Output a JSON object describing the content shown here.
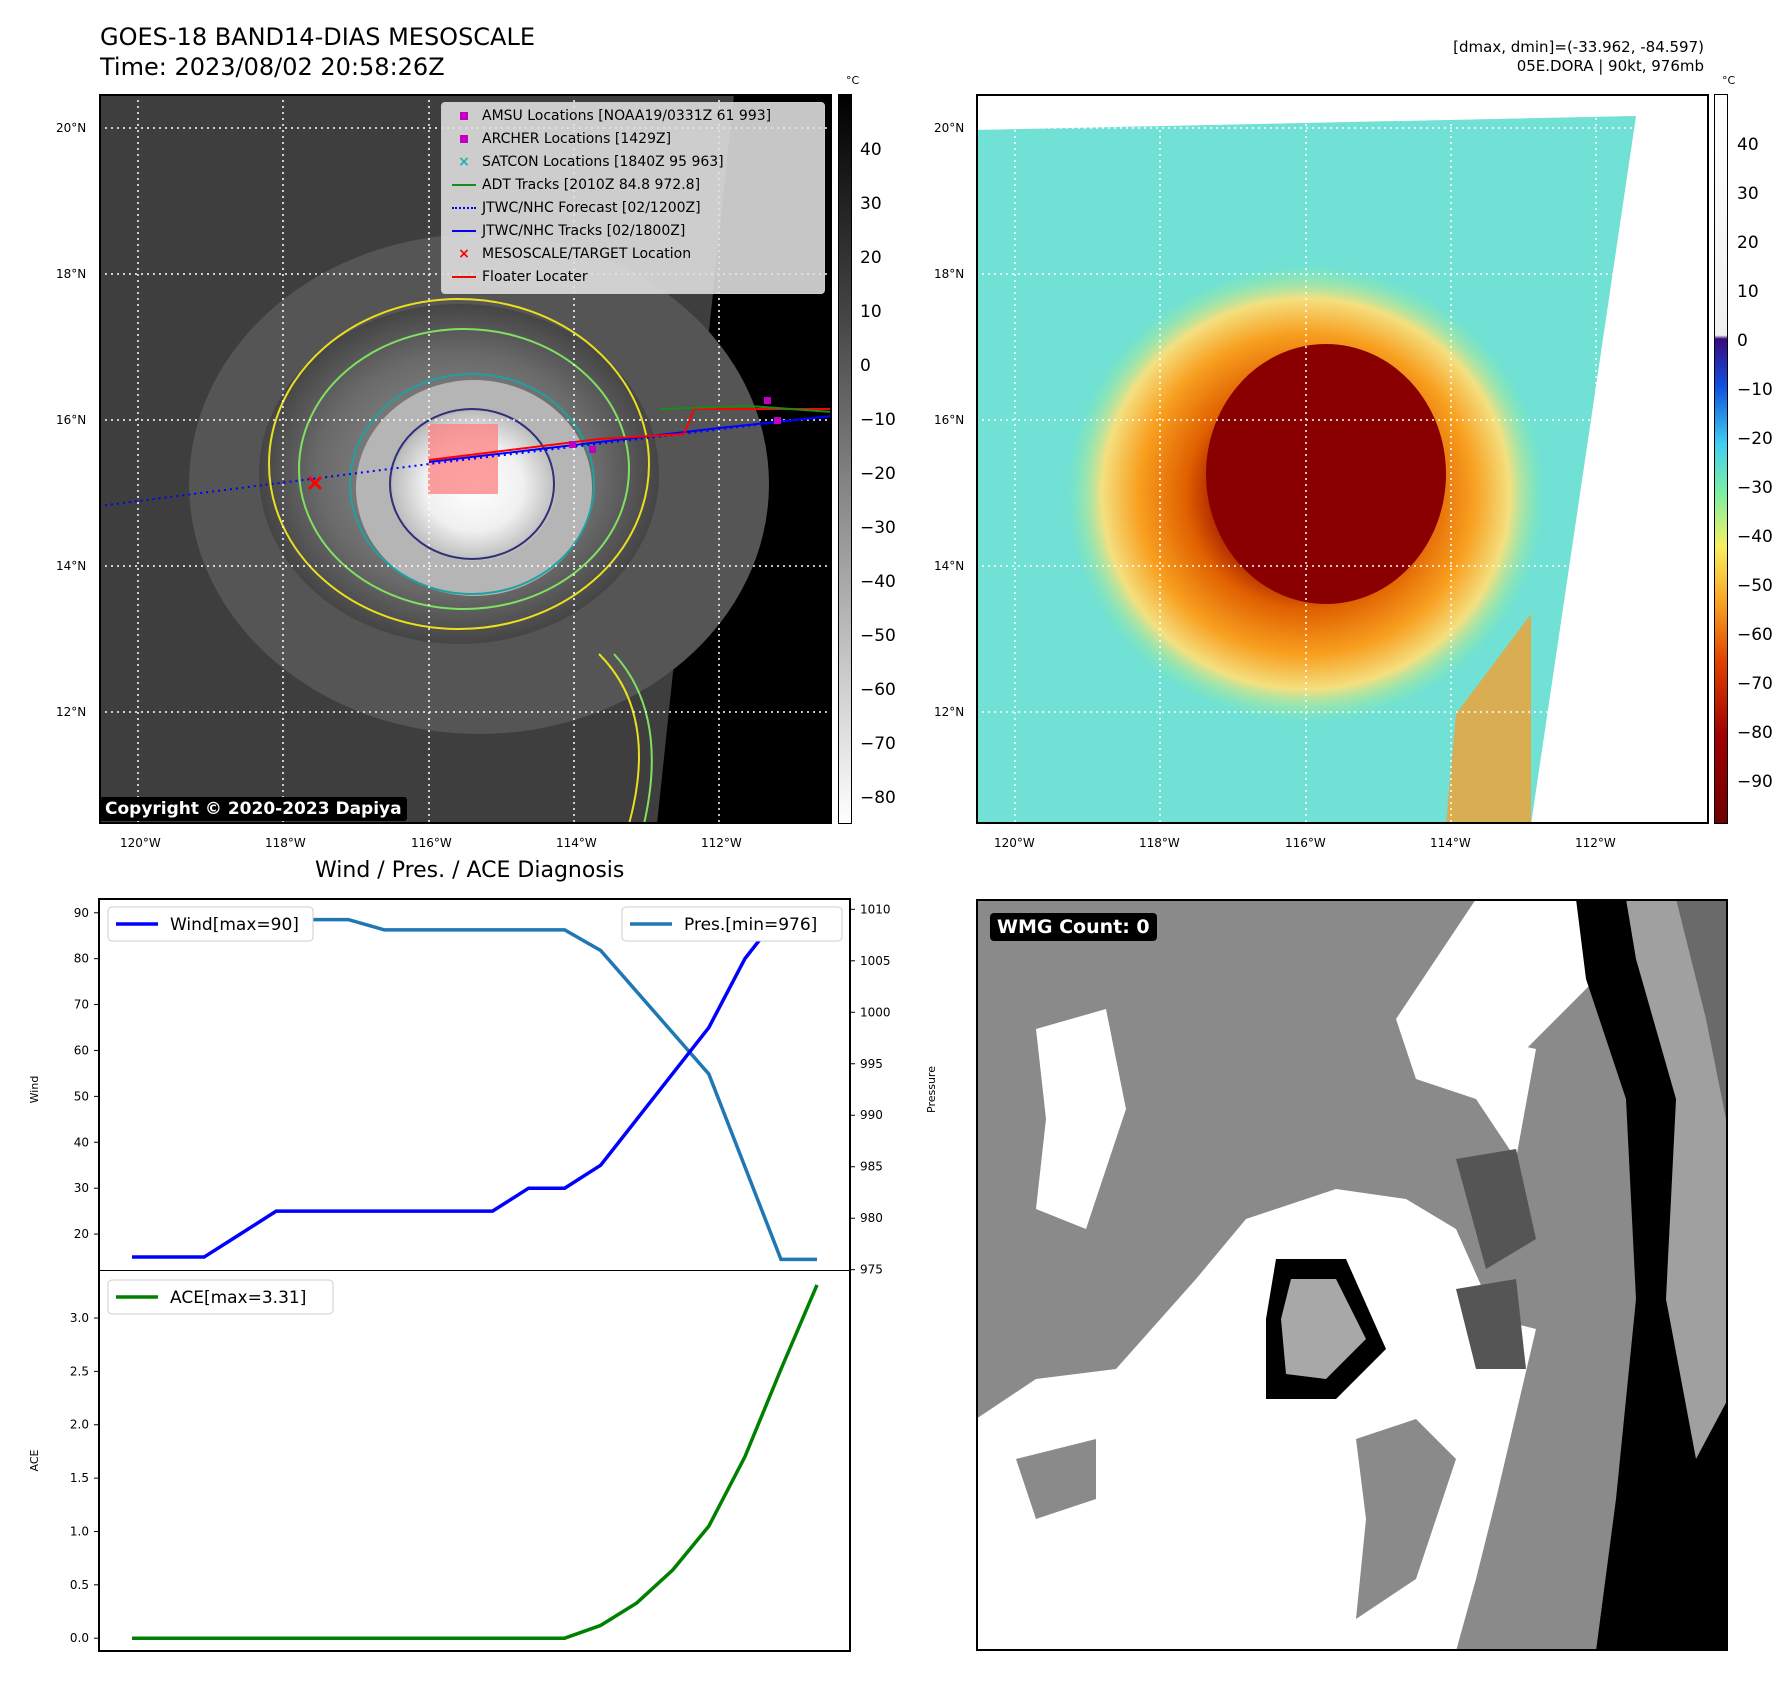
{
  "header": {
    "title_line1": "GOES-18 BAND14-DIAS MESOSCALE",
    "title_line2": "Time: 2023/08/02 20:58:26Z",
    "right_line1": "[dmax, dmin]=(-33.962, -84.597)",
    "right_line2": "05E.DORA | 90kt, 976mb"
  },
  "map": {
    "lat_labels": [
      "20°N",
      "18°N",
      "16°N",
      "14°N",
      "12°N"
    ],
    "lon_labels": [
      "120°W",
      "118°W",
      "116°W",
      "114°W",
      "112°W"
    ],
    "copyright": "Copyright © 2020-2023 Dapiya",
    "legend": [
      {
        "label": "AMSU Locations [NOAA19/0331Z 61 993]",
        "color": "#c000c0",
        "marker": "square"
      },
      {
        "label": "ARCHER Locations [1429Z]",
        "color": "#c000c0",
        "marker": "square"
      },
      {
        "label": "SATCON Locations [1840Z 95 963]",
        "color": "#20b0b0",
        "marker": "x"
      },
      {
        "label": "ADT Tracks [2010Z 84.8 972.8]",
        "color": "#1a8a1a",
        "marker": "line"
      },
      {
        "label": "JTWC/NHC Forecast [02/1200Z]",
        "color": "#0000ff",
        "marker": "dotted"
      },
      {
        "label": "JTWC/NHC Tracks [02/1800Z]",
        "color": "#0000ff",
        "marker": "line-dot"
      },
      {
        "label": "MESOSCALE/TARGET Location",
        "color": "#ff0000",
        "marker": "x"
      },
      {
        "label": "Floater Locater",
        "color": "#ff0000",
        "marker": "line"
      }
    ]
  },
  "colorbar_gray": {
    "unit": "°C",
    "ticks": [
      "40",
      "30",
      "20",
      "10",
      "0",
      "−10",
      "−20",
      "−30",
      "−40",
      "−50",
      "−60",
      "−70",
      "−80"
    ]
  },
  "colorbar_color": {
    "unit": "°C",
    "ticks": [
      "40",
      "30",
      "20",
      "10",
      "0",
      "−10",
      "−20",
      "−30",
      "−40",
      "−50",
      "−60",
      "−70",
      "−80",
      "−90"
    ]
  },
  "wmg": {
    "label": "WMG Count: 0"
  },
  "chart_data": [
    {
      "type": "line",
      "title": "Wind / Pres. / ACE Diagnosis",
      "ylabel": "Wind",
      "ylabel_right": "Pressure",
      "ylim": [
        10,
        93
      ],
      "ylim_right": [
        974,
        1011
      ],
      "yticks": [
        20,
        30,
        40,
        50,
        60,
        70,
        80,
        90
      ],
      "yticks_right": [
        975,
        980,
        985,
        990,
        995,
        1000,
        1005,
        1010
      ],
      "series": [
        {
          "name": "Wind[max=90]",
          "color": "#0000ff",
          "axis": "left",
          "values": [
            15,
            15,
            15,
            20,
            25,
            25,
            25,
            25,
            25,
            25,
            25,
            30,
            30,
            35,
            45,
            55,
            65,
            80,
            90,
            90
          ]
        },
        {
          "name": "Pres.[min=976]",
          "color": "#1f77b4",
          "axis": "right",
          "values": [
            1010,
            1010,
            1010,
            1009,
            1009,
            1009,
            1009,
            1008,
            1008,
            1008,
            1008,
            1008,
            1008,
            1006,
            1002,
            998,
            994,
            985,
            976,
            976
          ]
        }
      ]
    },
    {
      "type": "line",
      "ylabel": "ACE",
      "ylim": [
        -0.12,
        3.45
      ],
      "yticks": [
        "0.0",
        "0.5",
        "1.0",
        "1.5",
        "2.0",
        "2.5",
        "3.0"
      ],
      "series": [
        {
          "name": "ACE[max=3.31]",
          "color": "#008000",
          "values": [
            0,
            0,
            0,
            0,
            0,
            0,
            0,
            0,
            0,
            0,
            0,
            0,
            0,
            0.12,
            0.33,
            0.64,
            1.05,
            1.7,
            2.52,
            3.31
          ]
        }
      ]
    }
  ]
}
